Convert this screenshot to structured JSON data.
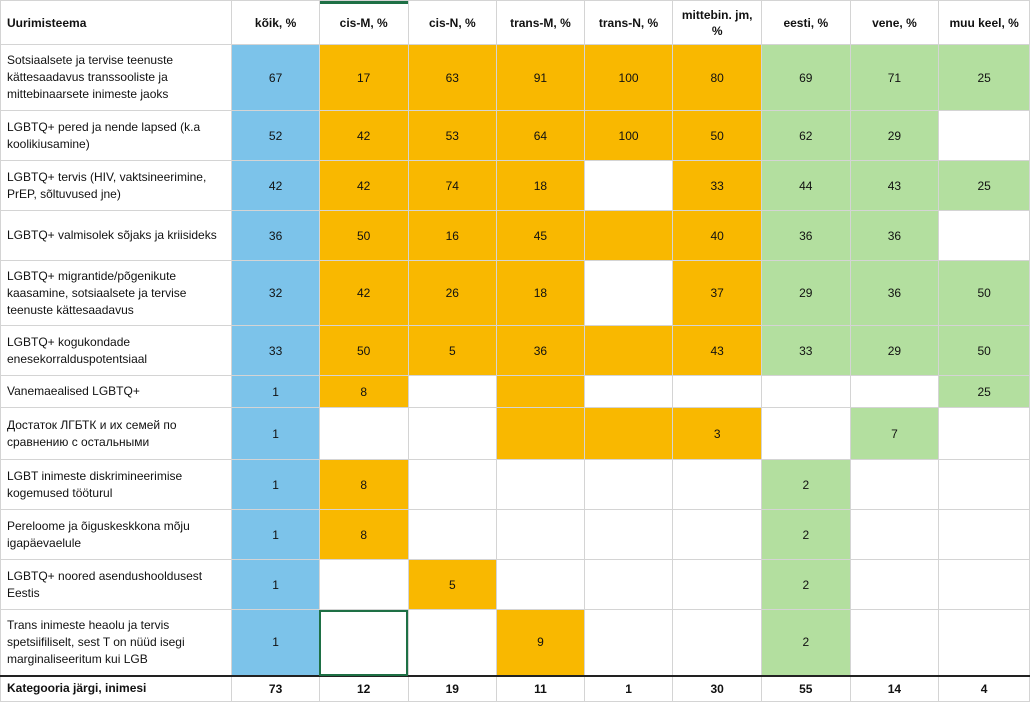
{
  "colors": {
    "blue": "#7cc3ea",
    "orange": "#f9b800",
    "green": "#b3df9f",
    "selection": "#1e7045"
  },
  "header": {
    "topic": "Uurimisteema",
    "columns": [
      "kõik, %",
      "cis-M, %",
      "cis-N, %",
      "trans-M, %",
      "trans-N, %",
      "mittebin. jm, %",
      "eesti, %",
      "vene, %",
      "muu keel, %"
    ]
  },
  "rows": [
    {
      "topic": "Sotsiaalsete ja tervise teenuste kättesaadavus transsooliste ja mittebinaarsete inimeste jaoks",
      "values": [
        "67",
        "17",
        "63",
        "91",
        "100",
        "80",
        "69",
        "71",
        "25"
      ]
    },
    {
      "topic": "LGBTQ+ pered ja nende lapsed (k.a koolikiusamine)",
      "values": [
        "52",
        "42",
        "53",
        "64",
        "100",
        "50",
        "62",
        "29",
        ""
      ]
    },
    {
      "topic": "LGBTQ+ tervis (HIV, vaktsineerimine, PrEP, sõltuvused jne)",
      "values": [
        "42",
        "42",
        "74",
        "18",
        "",
        "33",
        "44",
        "43",
        "25"
      ]
    },
    {
      "topic": "LGBTQ+ valmisolek sõjaks ja kriisideks",
      "values": [
        "36",
        "50",
        "16",
        "45",
        "",
        "40",
        "36",
        "36",
        ""
      ]
    },
    {
      "topic": "LGBTQ+ migrantide/põgenikute kaasamine, sotsiaalsete ja tervise teenuste kättesaadavus",
      "values": [
        "32",
        "42",
        "26",
        "18",
        "",
        "37",
        "29",
        "36",
        "50"
      ]
    },
    {
      "topic": "LGBTQ+ kogukondade enesekorralduspotentsiaal",
      "values": [
        "33",
        "50",
        "5",
        "36",
        "",
        "43",
        "33",
        "29",
        "50"
      ]
    },
    {
      "topic": "Vanemaealised LGBTQ+",
      "values": [
        "1",
        "8",
        "",
        "",
        "",
        "",
        "",
        "",
        "25"
      ]
    },
    {
      "topic": "Достаток ЛГБТК и их семей по сравнению с остальными",
      "values": [
        "1",
        "",
        "",
        "",
        "",
        "3",
        "",
        "7",
        ""
      ]
    },
    {
      "topic": "LGBT inimeste diskrimineerimise kogemused tööturul",
      "values": [
        "1",
        "8",
        "",
        "",
        "",
        "",
        "2",
        "",
        ""
      ]
    },
    {
      "topic": "Pereloome ja õiguskeskkona mõju igapäevaelule",
      "values": [
        "1",
        "8",
        "",
        "",
        "",
        "",
        "2",
        "",
        ""
      ]
    },
    {
      "topic": "LGBTQ+ noored asendushooldusest Eestis",
      "values": [
        "1",
        "",
        "5",
        "",
        "",
        "",
        "2",
        "",
        ""
      ]
    },
    {
      "topic": "Trans inimeste heaolu ja tervis spetsiifiliselt, sest T on nüüd isegi marginaliseeritum kui LGB",
      "values": [
        "1",
        "",
        "",
        "9",
        "",
        "",
        "2",
        "",
        ""
      ]
    }
  ],
  "footer": {
    "topic": "Kategooria järgi, inimesi",
    "values": [
      "73",
      "12",
      "19",
      "11",
      "1",
      "30",
      "55",
      "14",
      "4"
    ]
  }
}
